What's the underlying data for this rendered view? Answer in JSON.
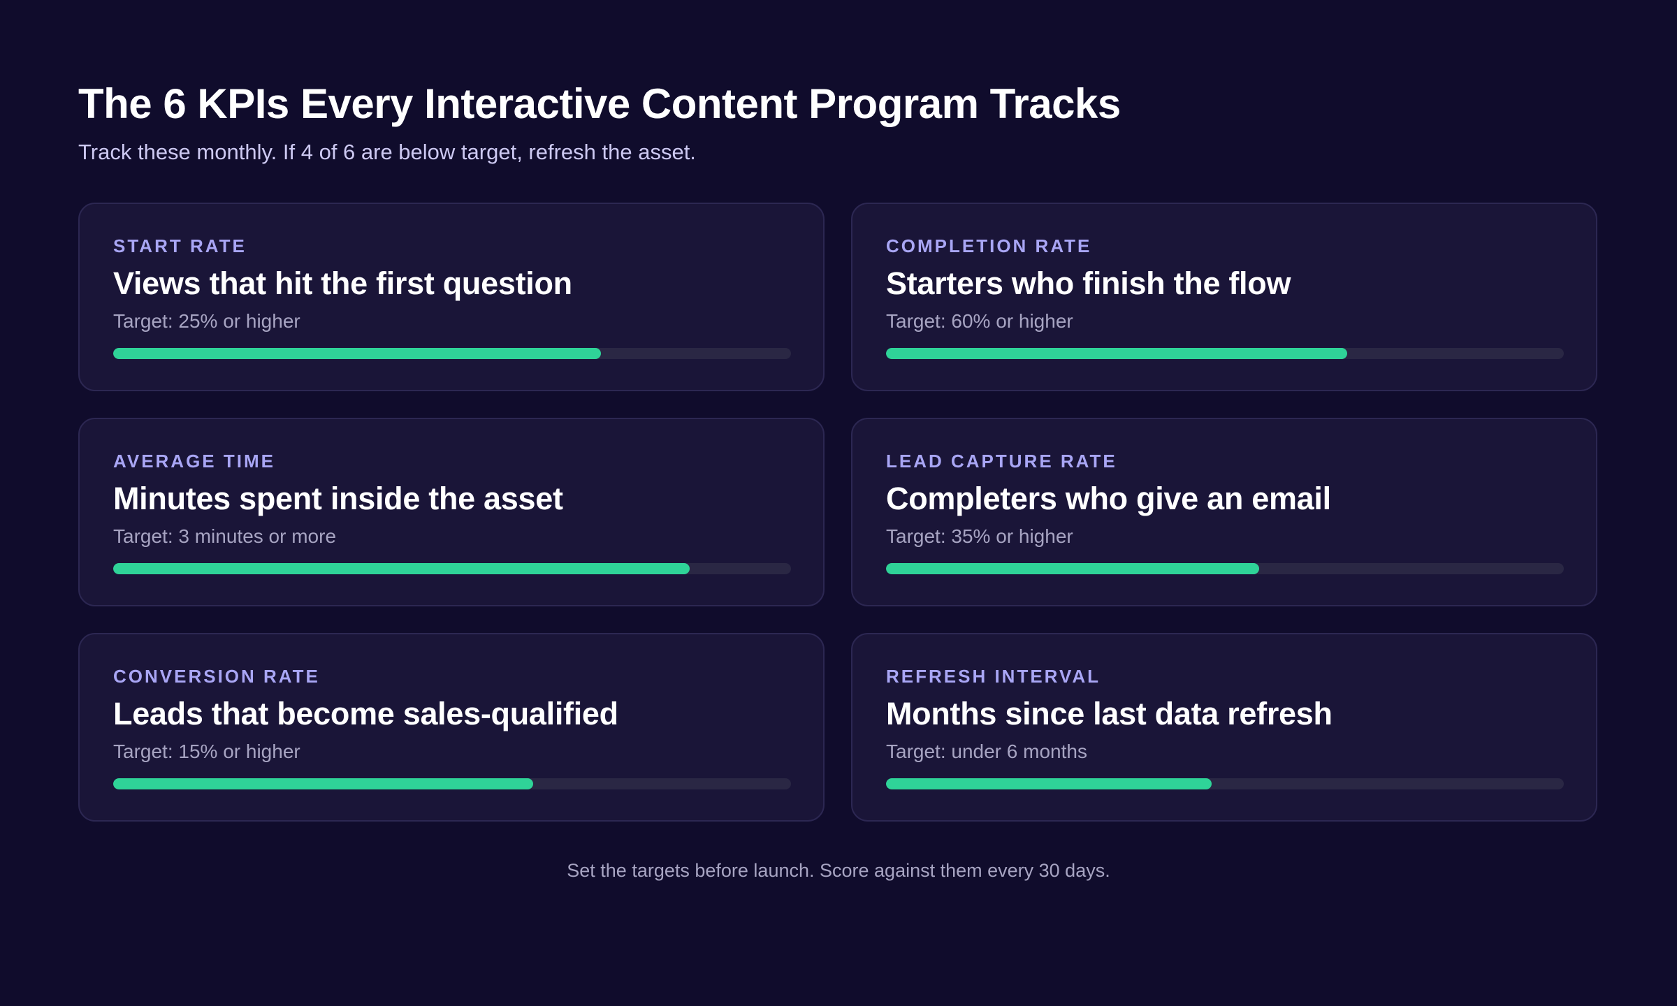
{
  "header": {
    "title": "The 6 KPIs Every Interactive Content Program Tracks",
    "subtitle": "Track these monthly. If 4 of 6 are below target, refresh the asset."
  },
  "kpis": [
    {
      "label": "START RATE",
      "headline": "Views that hit the first question",
      "target": "Target: 25% or higher",
      "progress": 0.72
    },
    {
      "label": "COMPLETION RATE",
      "headline": "Starters who finish the flow",
      "target": "Target: 60% or higher",
      "progress": 0.68
    },
    {
      "label": "AVERAGE TIME",
      "headline": "Minutes spent inside the asset",
      "target": "Target: 3 minutes or more",
      "progress": 0.85
    },
    {
      "label": "LEAD CAPTURE RATE",
      "headline": "Completers who give an email",
      "target": "Target: 35% or higher",
      "progress": 0.55
    },
    {
      "label": "CONVERSION RATE",
      "headline": "Leads that become sales-qualified",
      "target": "Target: 15% or higher",
      "progress": 0.62
    },
    {
      "label": "REFRESH INTERVAL",
      "headline": "Months since last data refresh",
      "target": "Target: under 6 months",
      "progress": 0.48
    }
  ],
  "footer": {
    "note": "Set the targets before launch. Score against them every 30 days."
  },
  "colors": {
    "background": "#100c2c",
    "card": "#1a1538",
    "accent_label": "#a9a6f5",
    "progress_fill": "#2fd398",
    "progress_track": "#2a2744"
  }
}
